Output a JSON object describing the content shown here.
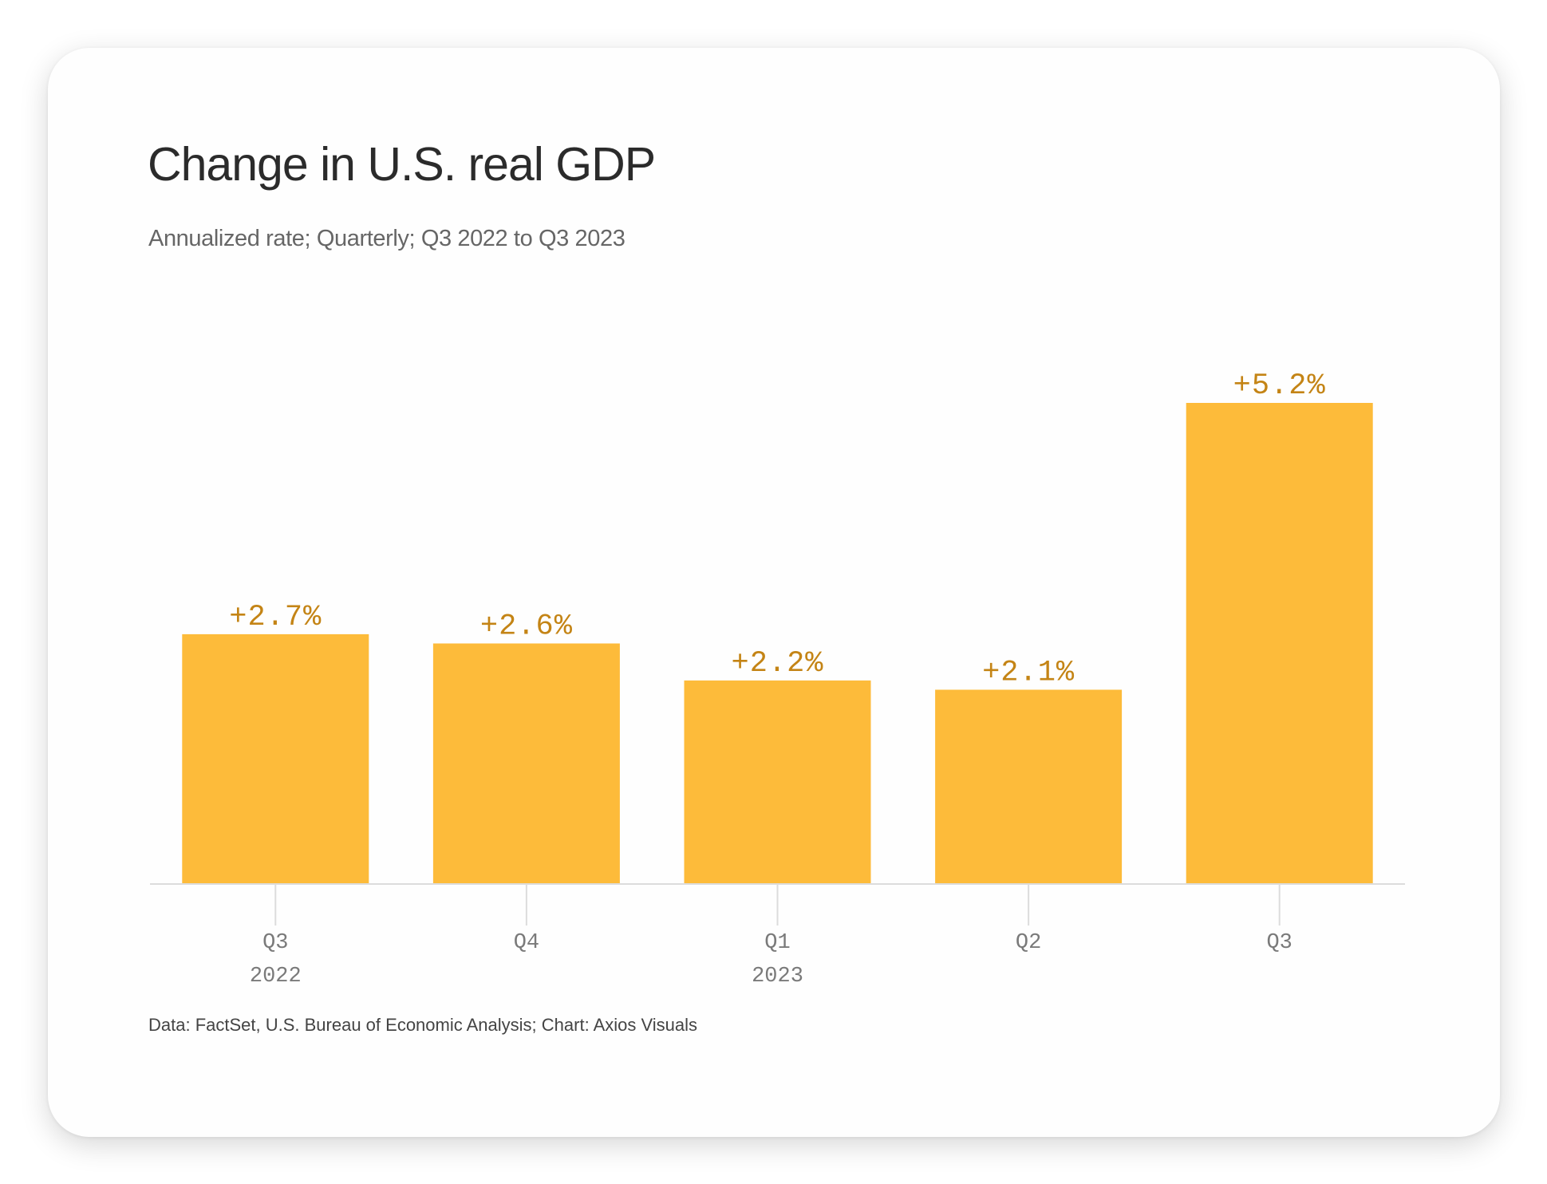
{
  "header": {
    "title": "Change in U.S. real GDP",
    "subtitle": "Annualized rate; Quarterly; Q3 2022 to Q3 2023"
  },
  "footer": {
    "source": "Data: FactSet, U.S. Bureau of Economic Analysis; Chart: Axios Visuals"
  },
  "colors": {
    "bar": "#fdbb3a",
    "bar_label": "#c48415",
    "axis_line": "#dcdcdc",
    "tick_label": "#7a7a7a"
  },
  "chart_data": {
    "type": "bar",
    "title": "Change in U.S. real GDP",
    "subtitle": "Annualized rate; Quarterly; Q3 2022 to Q3 2023",
    "xlabel": "",
    "ylabel": "",
    "grid": false,
    "ylim": [
      0,
      5.2
    ],
    "categories": [
      "Q3",
      "Q4",
      "Q1",
      "Q2",
      "Q3"
    ],
    "year_labels": [
      "2022",
      "",
      "2023",
      "",
      ""
    ],
    "values": [
      2.7,
      2.6,
      2.2,
      2.1,
      5.2
    ],
    "data_labels": [
      "+2.7%",
      "+2.6%",
      "+2.2%",
      "+2.1%",
      "+5.2%"
    ]
  }
}
